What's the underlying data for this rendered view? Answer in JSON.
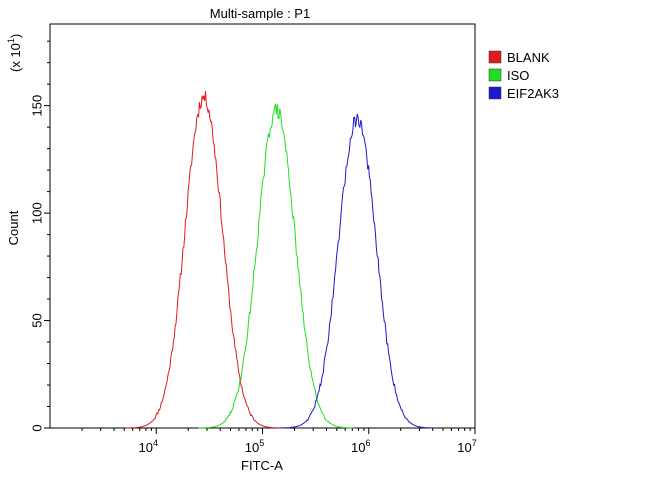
{
  "chart_data": {
    "type": "line",
    "title": "Multi-sample : P1",
    "xlabel": "FITC-A",
    "ylabel": "Count",
    "y_multiplier": {
      "base": "(x 10",
      "exp": "1",
      "close": ")"
    },
    "x_scale": "log",
    "xlim": [
      1000,
      10000000
    ],
    "ylim": [
      0,
      188
    ],
    "x_ticks": [
      {
        "value": 10000,
        "base": "10",
        "exp": "4"
      },
      {
        "value": 100000,
        "base": "10",
        "exp": "5"
      },
      {
        "value": 1000000,
        "base": "10",
        "exp": "6"
      },
      {
        "value": 10000000,
        "base": "10",
        "exp": "7"
      }
    ],
    "y_ticks": [
      {
        "value": 0,
        "label": "0"
      },
      {
        "value": 50,
        "label": "50"
      },
      {
        "value": 100,
        "label": "100"
      },
      {
        "value": 150,
        "label": "150"
      }
    ],
    "grid": false,
    "legend_position": "right",
    "series": [
      {
        "name": "BLANK",
        "color": "#e31a1c",
        "peak_x": 28000,
        "peak_y": 154,
        "width_decades": 0.175,
        "noise_seed": 11
      },
      {
        "name": "ISO",
        "color": "#22dd22",
        "peak_x": 135000,
        "peak_y": 148,
        "width_decades": 0.175,
        "noise_seed": 29
      },
      {
        "name": "EIF2AK3",
        "color": "#1a1acc",
        "peak_x": 780000,
        "peak_y": 144,
        "width_decades": 0.175,
        "noise_seed": 47
      }
    ]
  }
}
